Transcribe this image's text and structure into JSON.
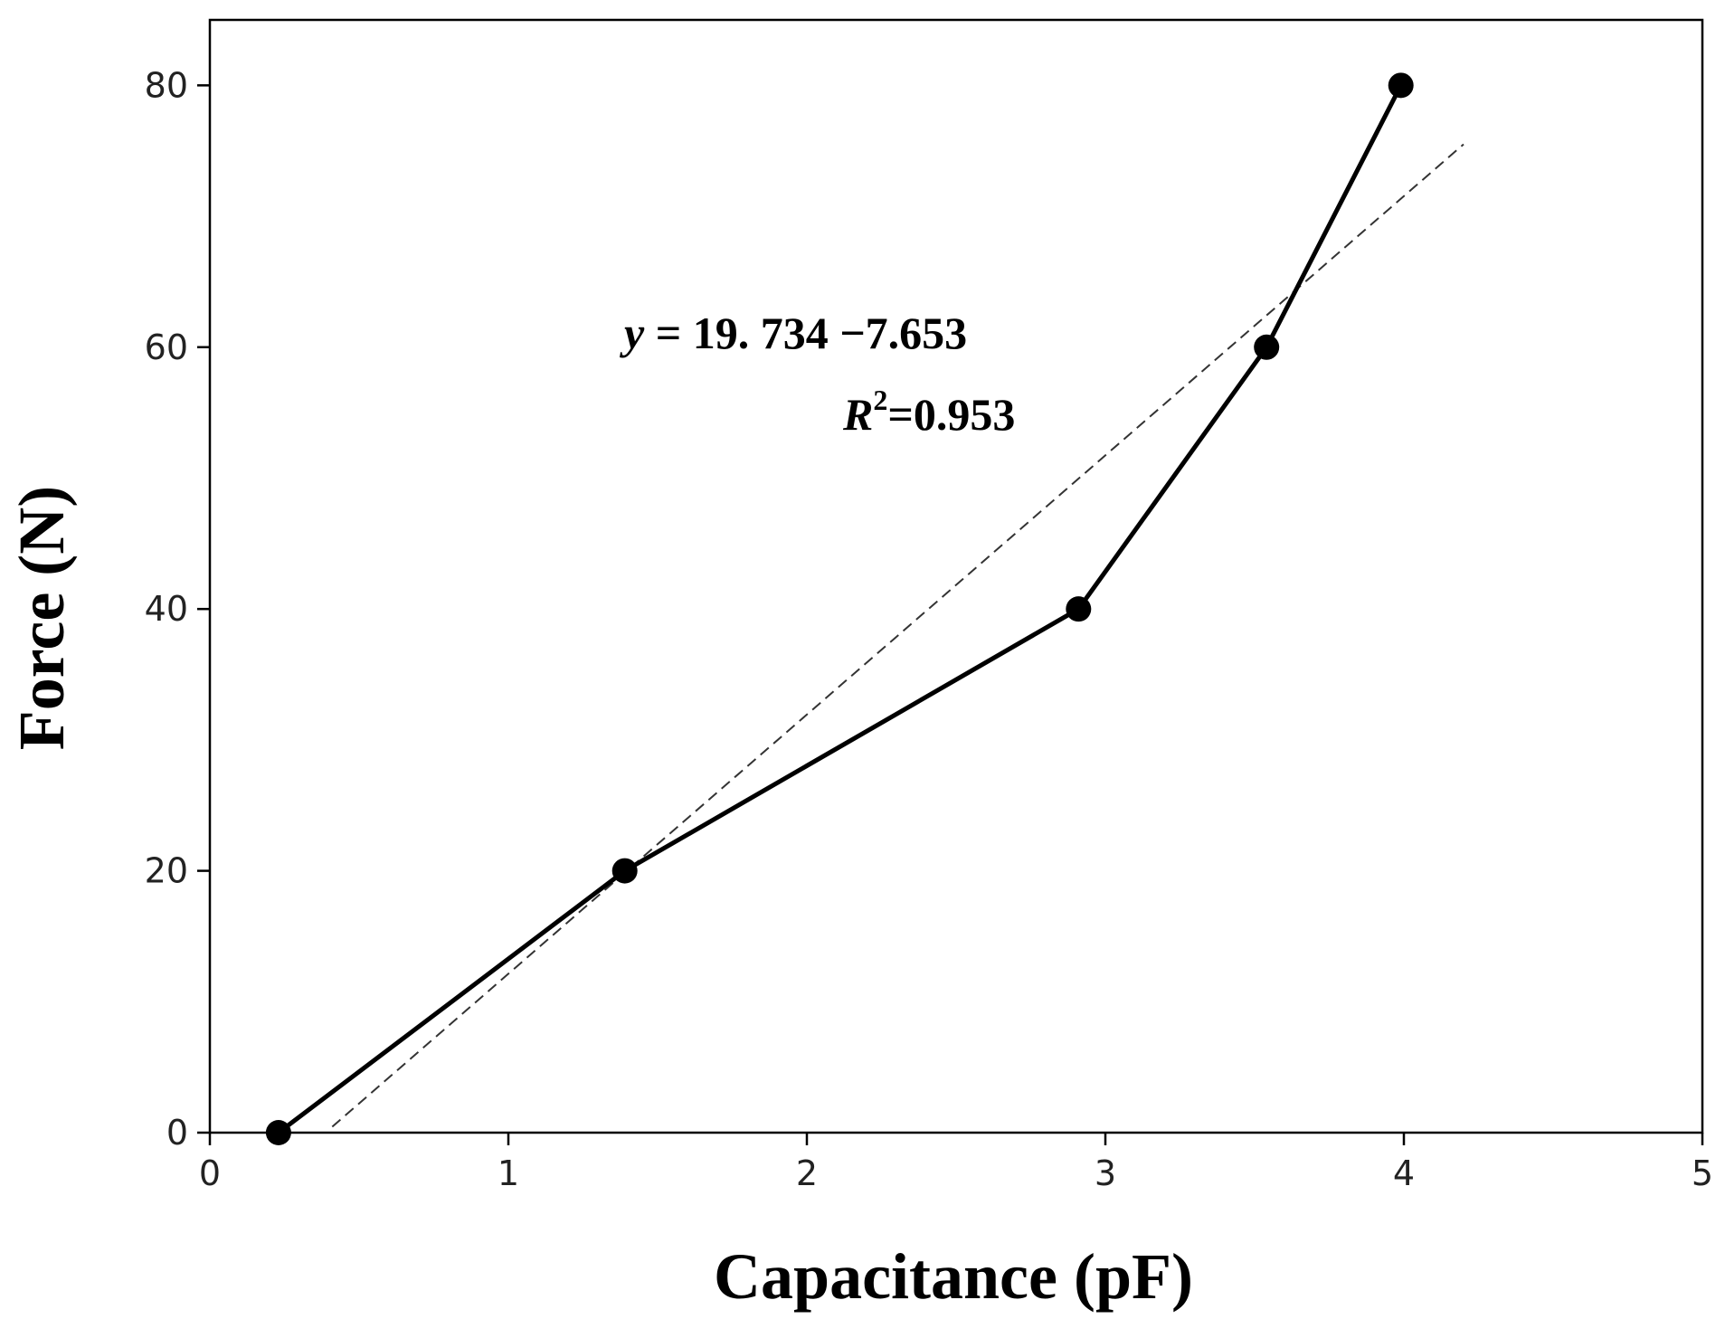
{
  "chart_data": {
    "type": "line",
    "title": "",
    "xlabel": "Capacitance (pF)",
    "ylabel": "Force (N)",
    "xlim": [
      0,
      5
    ],
    "ylim": [
      0,
      85
    ],
    "xticks": [
      0,
      1,
      2,
      3,
      4,
      5
    ],
    "yticks": [
      0,
      20,
      40,
      60,
      80
    ],
    "grid": false,
    "legend": "none",
    "series": [
      {
        "style": "solid-with-markers",
        "color": "#000000",
        "x": [
          0.23,
          1.39,
          2.91,
          3.54,
          3.99
        ],
        "y": [
          0,
          20,
          40,
          60,
          80
        ]
      }
    ],
    "fit_line": {
      "style": "dashed",
      "color": "#333333",
      "x": [
        0.41,
        4.2
      ],
      "y": [
        0.45,
        75.5
      ]
    },
    "annotations": {
      "equation_var": "y",
      "equation_rest": " = 19. 734 −7.653",
      "r2_var": "R",
      "r2_sup": "2",
      "r2_rest": "=0.953"
    }
  }
}
